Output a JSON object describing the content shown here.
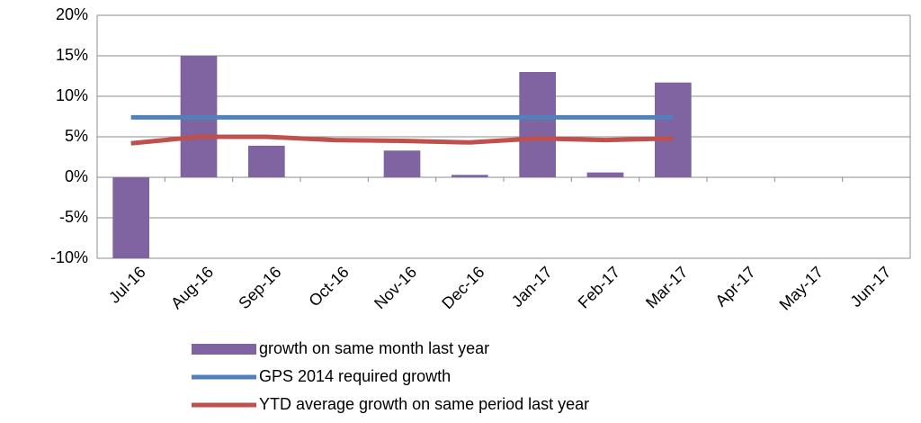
{
  "chart_data": {
    "type": "bar-line",
    "categories": [
      "Jul-16",
      "Aug-16",
      "Sep-16",
      "Oct-16",
      "Nov-16",
      "Dec-16",
      "Jan-17",
      "Feb-17",
      "Mar-17",
      "Apr-17",
      "May-17",
      "Jun-17"
    ],
    "series": [
      {
        "name": "growth on same month last year",
        "type": "bar",
        "color": "#8064a2",
        "values": [
          -10,
          15,
          3.9,
          null,
          3.3,
          0.3,
          13,
          0.6,
          11.7,
          null,
          null,
          null
        ]
      },
      {
        "name": "GPS 2014 required growth",
        "type": "line",
        "color": "#4f81bd",
        "values": [
          7.4,
          7.4,
          7.4,
          7.4,
          7.4,
          7.4,
          7.4,
          7.4,
          7.4,
          null,
          null,
          null
        ]
      },
      {
        "name": "YTD average growth on same period last year",
        "type": "line",
        "color": "#c0504d",
        "values": [
          4.2,
          5.0,
          5.0,
          4.6,
          4.5,
          4.3,
          4.8,
          4.6,
          4.8,
          null,
          null,
          null
        ]
      }
    ],
    "ylim": [
      -10,
      20
    ],
    "yticks": [
      {
        "value": -10,
        "label": "-10%"
      },
      {
        "value": -5,
        "label": "-5%"
      },
      {
        "value": 0,
        "label": "0%"
      },
      {
        "value": 5,
        "label": "5%"
      },
      {
        "value": 10,
        "label": "10%"
      },
      {
        "value": 15,
        "label": "15%"
      },
      {
        "value": 20,
        "label": "20%"
      }
    ],
    "grid": true
  }
}
